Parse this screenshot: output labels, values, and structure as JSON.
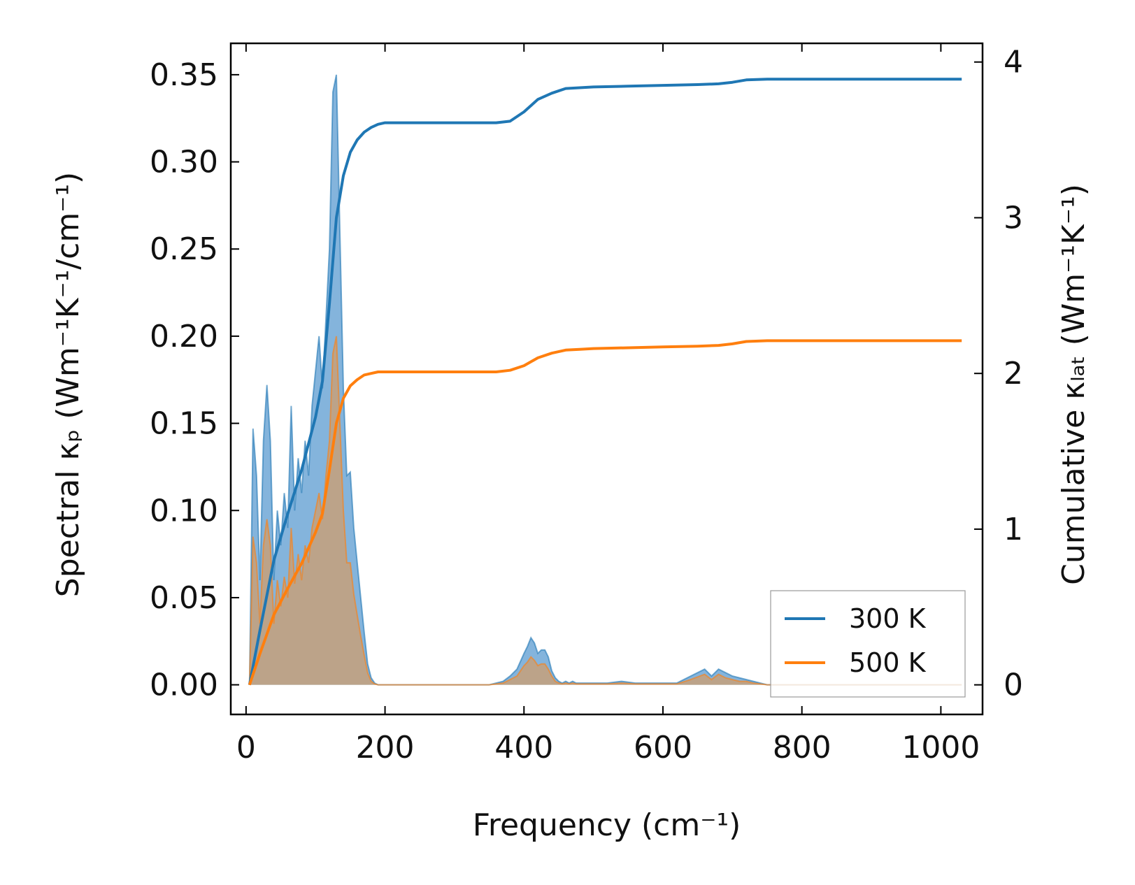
{
  "chart_data": {
    "type": "line",
    "xlabel": "Frequency (cm⁻¹)",
    "ylabel_left": "Spectral κₚ (Wm⁻¹K⁻¹/cm⁻¹)",
    "ylabel_right": "Cumulative κₗₐₜ (Wm⁻¹K⁻¹)",
    "xlim": [
      -22,
      1060
    ],
    "ylim_left": [
      -0.017,
      0.368
    ],
    "ylim_right": [
      -0.19,
      4.12
    ],
    "x_ticks": [
      0,
      200,
      400,
      600,
      800,
      1000
    ],
    "y_left_ticks": [
      "0.00",
      "0.05",
      "0.10",
      "0.15",
      "0.20",
      "0.25",
      "0.30",
      "0.35"
    ],
    "y_right_ticks": [
      "0",
      "1",
      "2",
      "3",
      "4"
    ],
    "legend": {
      "position": "bottom-right"
    },
    "colors": {
      "300K": "#1f77b4",
      "500K": "#ff7f0e",
      "fill_300K": "#5b9bd0",
      "fill_500K": "#c6a07a"
    },
    "series": [
      {
        "name": "300 K",
        "spectral": {
          "x": [
            5,
            10,
            15,
            20,
            25,
            30,
            35,
            40,
            45,
            50,
            55,
            60,
            65,
            70,
            75,
            80,
            85,
            90,
            95,
            100,
            105,
            110,
            115,
            120,
            125,
            130,
            135,
            140,
            145,
            150,
            155,
            160,
            165,
            170,
            175,
            180,
            185,
            190,
            195,
            200,
            210,
            250,
            300,
            350,
            370,
            380,
            390,
            400,
            405,
            410,
            415,
            420,
            425,
            430,
            435,
            440,
            445,
            450,
            455,
            460,
            465,
            470,
            475,
            480,
            490,
            500,
            520,
            540,
            560,
            580,
            600,
            620,
            640,
            660,
            670,
            680,
            690,
            700,
            710,
            720,
            730,
            740,
            750,
            760,
            780,
            800,
            850,
            900,
            950,
            1000,
            1030
          ],
          "y": [
            0,
            0.147,
            0.12,
            0.06,
            0.14,
            0.172,
            0.14,
            0.06,
            0.1,
            0.08,
            0.11,
            0.09,
            0.16,
            0.1,
            0.13,
            0.11,
            0.14,
            0.12,
            0.16,
            0.18,
            0.2,
            0.17,
            0.21,
            0.25,
            0.34,
            0.35,
            0.26,
            0.17,
            0.12,
            0.122,
            0.09,
            0.07,
            0.05,
            0.03,
            0.012,
            0.004,
            0.001,
            0,
            0,
            0,
            0,
            0,
            0,
            0,
            0.002,
            0.005,
            0.009,
            0.018,
            0.022,
            0.027,
            0.024,
            0.018,
            0.02,
            0.02,
            0.016,
            0.008,
            0.004,
            0.002,
            0.001,
            0.002,
            0.001,
            0.002,
            0.001,
            0.001,
            0.001,
            0.001,
            0.001,
            0.002,
            0.001,
            0.001,
            0.001,
            0.001,
            0.005,
            0.009,
            0.005,
            0.009,
            0.007,
            0.005,
            0.004,
            0.003,
            0.002,
            0.001,
            0,
            0,
            0,
            0,
            0,
            0,
            0,
            0,
            0
          ]
        },
        "cumulative": {
          "x": [
            5,
            20,
            40,
            60,
            80,
            100,
            110,
            120,
            130,
            140,
            150,
            160,
            170,
            180,
            190,
            200,
            220,
            300,
            360,
            380,
            400,
            420,
            440,
            460,
            480,
            500,
            550,
            600,
            650,
            680,
            700,
            720,
            750,
            800,
            900,
            1000,
            1030
          ],
          "y": [
            0,
            0.35,
            0.8,
            1.1,
            1.38,
            1.72,
            1.95,
            2.45,
            3.0,
            3.27,
            3.42,
            3.5,
            3.55,
            3.58,
            3.6,
            3.61,
            3.61,
            3.61,
            3.61,
            3.62,
            3.68,
            3.76,
            3.8,
            3.83,
            3.835,
            3.84,
            3.845,
            3.85,
            3.855,
            3.86,
            3.87,
            3.885,
            3.89,
            3.89,
            3.89,
            3.89,
            3.89
          ]
        }
      },
      {
        "name": "500 K",
        "spectral": {
          "x": [
            5,
            10,
            15,
            20,
            25,
            30,
            35,
            40,
            45,
            50,
            55,
            60,
            65,
            70,
            75,
            80,
            85,
            90,
            95,
            100,
            105,
            110,
            115,
            120,
            125,
            130,
            135,
            140,
            145,
            150,
            155,
            160,
            165,
            170,
            175,
            180,
            185,
            190,
            195,
            200,
            210,
            250,
            300,
            350,
            370,
            380,
            390,
            400,
            405,
            410,
            415,
            420,
            425,
            430,
            435,
            440,
            445,
            450,
            455,
            460,
            465,
            470,
            475,
            480,
            490,
            500,
            520,
            540,
            560,
            580,
            600,
            620,
            640,
            660,
            670,
            680,
            690,
            700,
            710,
            720,
            730,
            740,
            750,
            760,
            780,
            800,
            850,
            900,
            950,
            1000,
            1030
          ],
          "y": [
            0,
            0.085,
            0.07,
            0.035,
            0.08,
            0.095,
            0.08,
            0.035,
            0.06,
            0.045,
            0.062,
            0.05,
            0.09,
            0.058,
            0.075,
            0.06,
            0.08,
            0.07,
            0.09,
            0.1,
            0.11,
            0.095,
            0.12,
            0.14,
            0.19,
            0.2,
            0.15,
            0.1,
            0.07,
            0.07,
            0.052,
            0.04,
            0.028,
            0.017,
            0.007,
            0.002,
            0.0005,
            0,
            0,
            0,
            0,
            0,
            0,
            0,
            0.001,
            0.003,
            0.005,
            0.011,
            0.013,
            0.016,
            0.014,
            0.011,
            0.012,
            0.012,
            0.009,
            0.005,
            0.002,
            0.001,
            0.0005,
            0.001,
            0.0005,
            0.001,
            0.0005,
            0.0005,
            0.0005,
            0.0005,
            0.0005,
            0.001,
            0.0005,
            0.0005,
            0.0005,
            0.0005,
            0.003,
            0.006,
            0.003,
            0.006,
            0.004,
            0.003,
            0.002,
            0.002,
            0.001,
            0.0005,
            0,
            0,
            0,
            0,
            0,
            0,
            0,
            0,
            0
          ]
        },
        "cumulative": {
          "x": [
            5,
            20,
            40,
            60,
            80,
            100,
            110,
            120,
            130,
            140,
            150,
            160,
            170,
            180,
            190,
            200,
            220,
            300,
            360,
            380,
            400,
            420,
            440,
            460,
            480,
            500,
            550,
            600,
            650,
            680,
            700,
            720,
            750,
            800,
            900,
            1000,
            1030
          ],
          "y": [
            0,
            0.2,
            0.45,
            0.62,
            0.78,
            0.98,
            1.1,
            1.38,
            1.68,
            1.84,
            1.92,
            1.96,
            1.99,
            2.0,
            2.01,
            2.01,
            2.01,
            2.01,
            2.01,
            2.02,
            2.05,
            2.1,
            2.13,
            2.15,
            2.155,
            2.16,
            2.165,
            2.17,
            2.175,
            2.18,
            2.19,
            2.205,
            2.21,
            2.21,
            2.21,
            2.21,
            2.21
          ]
        }
      }
    ]
  }
}
